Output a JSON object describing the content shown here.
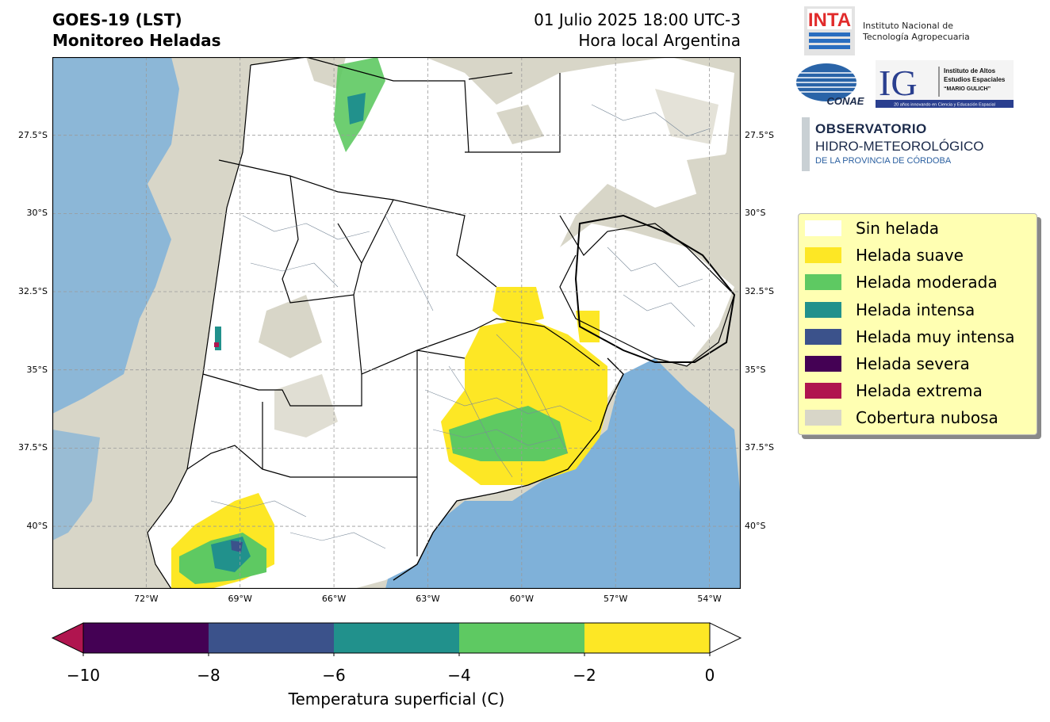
{
  "header": {
    "title_line1": "GOES-19 (LST)",
    "title_line2": "Monitoreo Heladas",
    "date_line": "01 Julio 2025 18:00 UTC-3",
    "local_line": "Hora local Argentina"
  },
  "logos": {
    "inta_mark": "INTA",
    "inta_name_line1": "Instituto Nacional de",
    "inta_name_line2": "Tecnología Agropecuaria",
    "conae_mark": "CONAE",
    "ig_mark": "IG",
    "ig_line1": "Instituto de Altos",
    "ig_line2": "Estudios Espaciales",
    "ig_line3": "“MARIO GULICH”",
    "ig_tagline": "20 años innovando en Ciencia y Educación Espacial",
    "obs_line1": "OBSERVATORIO",
    "obs_line2": "HIDRO-METEOROLÓGICO",
    "obs_line3": "DE LA PROVINCIA DE CÓRDOBA"
  },
  "map": {
    "lat_labels": [
      "27.5°S",
      "30°S",
      "32.5°S",
      "35°S",
      "37.5°S",
      "40°S"
    ],
    "lon_labels": [
      "72°W",
      "69°W",
      "66°W",
      "63°W",
      "60°W",
      "57°W",
      "54°W"
    ],
    "lat_values": [
      -27.5,
      -30,
      -32.5,
      -35,
      -37.5,
      -40
    ],
    "lon_values": [
      -72,
      -69,
      -66,
      -63,
      -60,
      -57,
      -54
    ],
    "extent": {
      "lon_min": -75,
      "lon_max": -53,
      "lat_min": -42,
      "lat_max": -25
    },
    "colors": {
      "cloud": "#d8d6c8",
      "water": "#7fb1d9",
      "land": "#ffffff",
      "grid": "#9a9a9a"
    }
  },
  "legend": {
    "items": [
      {
        "label": "Sin helada",
        "color": "#ffffff"
      },
      {
        "label": "Helada suave",
        "color": "#fde725"
      },
      {
        "label": "Helada moderada",
        "color": "#5ec962"
      },
      {
        "label": "Helada intensa",
        "color": "#21918c"
      },
      {
        "label": "Helada muy intensa",
        "color": "#3b528b"
      },
      {
        "label": "Helada severa",
        "color": "#440154"
      },
      {
        "label": "Helada extrema",
        "color": "#b0154f"
      },
      {
        "label": "Cobertura nubosa",
        "color": "#d8d6c8"
      }
    ]
  },
  "colorbar": {
    "ticks": [
      "−10",
      "−8",
      "−6",
      "−4",
      "−2",
      "0"
    ],
    "tick_values": [
      -10,
      -8,
      -6,
      -4,
      -2,
      0
    ],
    "label": "Temperatura superficial (C)",
    "segments": [
      "#440154",
      "#3b528b",
      "#21918c",
      "#5ec962",
      "#fde725"
    ],
    "under_color": "#b0154f",
    "over_color": "#ffffff"
  }
}
